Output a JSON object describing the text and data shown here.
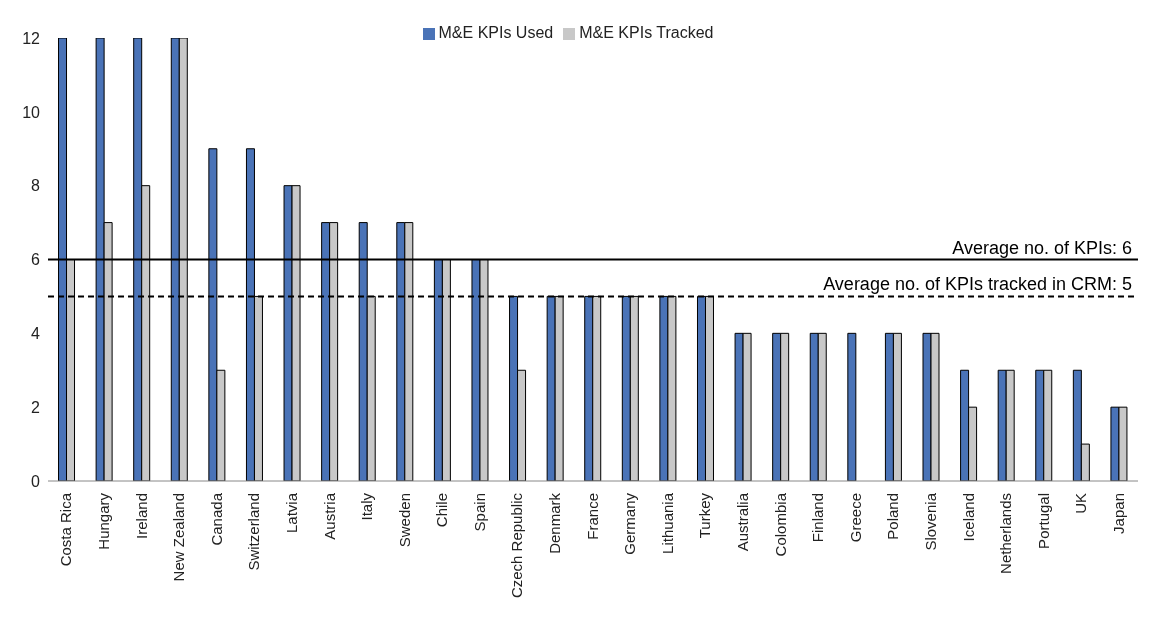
{
  "chart_data": {
    "type": "bar",
    "categories": [
      "Costa Rica",
      "Hungary",
      "Ireland",
      "New Zealand",
      "Canada",
      "Switzerland",
      "Latvia",
      "Austria",
      "Italy",
      "Sweden",
      "Chile",
      "Spain",
      "Czech Republic",
      "Denmark",
      "France",
      "Germany",
      "Lithuania",
      "Turkey",
      "Australia",
      "Colombia",
      "Finland",
      "Greece",
      "Poland",
      "Slovenia",
      "Iceland",
      "Netherlands",
      "Portugal",
      "UK",
      "Japan"
    ],
    "series": [
      {
        "name": "M&E KPIs Used",
        "color": "#4a73b7",
        "values": [
          12,
          12,
          12,
          12,
          9,
          9,
          8,
          7,
          7,
          7,
          6,
          6,
          5,
          5,
          5,
          5,
          5,
          5,
          4,
          4,
          4,
          4,
          4,
          4,
          3,
          3,
          3,
          3,
          2
        ]
      },
      {
        "name": "M&E KPIs Tracked",
        "color": "#c8c8c8",
        "values": [
          6,
          7,
          8,
          12,
          3,
          5,
          8,
          7,
          5,
          7,
          6,
          6,
          3,
          5,
          5,
          5,
          5,
          5,
          4,
          4,
          4,
          0,
          4,
          4,
          2,
          3,
          3,
          1,
          2
        ]
      }
    ],
    "ylim": [
      0,
      12
    ],
    "yticks": [
      0,
      2,
      4,
      6,
      8,
      10,
      12
    ],
    "grid": false,
    "legend": "top",
    "ref_lines": [
      {
        "axis": "y",
        "value": 6,
        "label": "Average no. of KPIs: 6",
        "color": "#000000",
        "line_style": "solid"
      },
      {
        "axis": "y",
        "value": 5,
        "label": "Average no. of KPIs tracked in CRM: 5",
        "color": "#000000",
        "line_style": "dashed"
      }
    ]
  }
}
